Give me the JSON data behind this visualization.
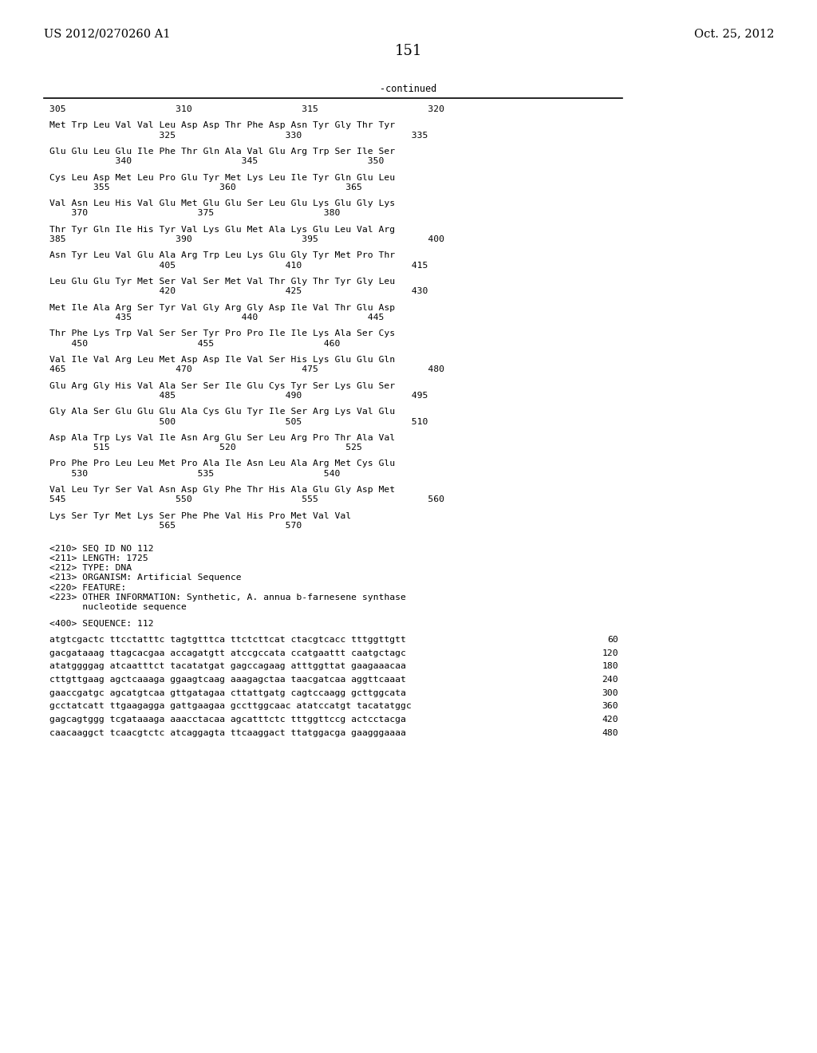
{
  "header_left": "US 2012/0270260 A1",
  "header_right": "Oct. 25, 2012",
  "page_number": "151",
  "continued_label": "-continued",
  "background_color": "#ffffff",
  "text_color": "#000000",
  "font_size_header": 10.5,
  "font_size_body": 8.5,
  "font_size_page": 13,
  "sequence_lines": [
    {
      "type": "numbering",
      "text": "305                    310                    315                    320"
    },
    {
      "type": "blank"
    },
    {
      "type": "seq",
      "text": "Met Trp Leu Val Val Leu Asp Asp Thr Phe Asp Asn Tyr Gly Thr Tyr"
    },
    {
      "type": "numbering2",
      "text": "                    325                    330                    335"
    },
    {
      "type": "blank"
    },
    {
      "type": "seq",
      "text": "Glu Glu Leu Glu Ile Phe Thr Gln Ala Val Glu Arg Trp Ser Ile Ser"
    },
    {
      "type": "numbering2",
      "text": "            340                    345                    350"
    },
    {
      "type": "blank"
    },
    {
      "type": "seq",
      "text": "Cys Leu Asp Met Leu Pro Glu Tyr Met Lys Leu Ile Tyr Gln Glu Leu"
    },
    {
      "type": "numbering2",
      "text": "        355                    360                    365"
    },
    {
      "type": "blank"
    },
    {
      "type": "seq",
      "text": "Val Asn Leu His Val Glu Met Glu Glu Ser Leu Glu Lys Glu Gly Lys"
    },
    {
      "type": "numbering2",
      "text": "    370                    375                    380"
    },
    {
      "type": "blank"
    },
    {
      "type": "seq",
      "text": "Thr Tyr Gln Ile His Tyr Val Lys Glu Met Ala Lys Glu Leu Val Arg"
    },
    {
      "type": "numbering2",
      "text": "385                    390                    395                    400"
    },
    {
      "type": "blank"
    },
    {
      "type": "seq",
      "text": "Asn Tyr Leu Val Glu Ala Arg Trp Leu Lys Glu Gly Tyr Met Pro Thr"
    },
    {
      "type": "numbering2",
      "text": "                    405                    410                    415"
    },
    {
      "type": "blank"
    },
    {
      "type": "seq",
      "text": "Leu Glu Glu Tyr Met Ser Val Ser Met Val Thr Gly Thr Tyr Gly Leu"
    },
    {
      "type": "numbering2",
      "text": "                    420                    425                    430"
    },
    {
      "type": "blank"
    },
    {
      "type": "seq",
      "text": "Met Ile Ala Arg Ser Tyr Val Gly Arg Gly Asp Ile Val Thr Glu Asp"
    },
    {
      "type": "numbering2",
      "text": "            435                    440                    445"
    },
    {
      "type": "blank"
    },
    {
      "type": "seq",
      "text": "Thr Phe Lys Trp Val Ser Ser Tyr Pro Pro Ile Ile Lys Ala Ser Cys"
    },
    {
      "type": "numbering2",
      "text": "    450                    455                    460"
    },
    {
      "type": "blank"
    },
    {
      "type": "seq",
      "text": "Val Ile Val Arg Leu Met Asp Asp Ile Val Ser His Lys Glu Glu Gln"
    },
    {
      "type": "numbering2",
      "text": "465                    470                    475                    480"
    },
    {
      "type": "blank"
    },
    {
      "type": "seq",
      "text": "Glu Arg Gly His Val Ala Ser Ser Ile Glu Cys Tyr Ser Lys Glu Ser"
    },
    {
      "type": "numbering2",
      "text": "                    485                    490                    495"
    },
    {
      "type": "blank"
    },
    {
      "type": "seq",
      "text": "Gly Ala Ser Glu Glu Glu Ala Cys Glu Tyr Ile Ser Arg Lys Val Glu"
    },
    {
      "type": "numbering2",
      "text": "                    500                    505                    510"
    },
    {
      "type": "blank"
    },
    {
      "type": "seq",
      "text": "Asp Ala Trp Lys Val Ile Asn Arg Glu Ser Leu Arg Pro Thr Ala Val"
    },
    {
      "type": "numbering2",
      "text": "        515                    520                    525"
    },
    {
      "type": "blank"
    },
    {
      "type": "seq",
      "text": "Pro Phe Pro Leu Leu Met Pro Ala Ile Asn Leu Ala Arg Met Cys Glu"
    },
    {
      "type": "numbering2",
      "text": "    530                    535                    540"
    },
    {
      "type": "blank"
    },
    {
      "type": "seq",
      "text": "Val Leu Tyr Ser Val Asn Asp Gly Phe Thr His Ala Glu Gly Asp Met"
    },
    {
      "type": "numbering2",
      "text": "545                    550                    555                    560"
    },
    {
      "type": "blank"
    },
    {
      "type": "seq",
      "text": "Lys Ser Tyr Met Lys Ser Phe Phe Val His Pro Met Val Val"
    },
    {
      "type": "numbering2",
      "text": "                    565                    570"
    },
    {
      "type": "blank"
    },
    {
      "type": "blank"
    },
    {
      "type": "meta",
      "text": "<210> SEQ ID NO 112"
    },
    {
      "type": "meta",
      "text": "<211> LENGTH: 1725"
    },
    {
      "type": "meta",
      "text": "<212> TYPE: DNA"
    },
    {
      "type": "meta",
      "text": "<213> ORGANISM: Artificial Sequence"
    },
    {
      "type": "meta",
      "text": "<220> FEATURE:"
    },
    {
      "type": "meta",
      "text": "<223> OTHER INFORMATION: Synthetic, A. annua b-farnesene synthase"
    },
    {
      "type": "meta_indent",
      "text": "      nucleotide sequence"
    },
    {
      "type": "blank"
    },
    {
      "type": "meta",
      "text": "<400> SEQUENCE: 112"
    },
    {
      "type": "blank"
    },
    {
      "type": "dna",
      "text": "atgtcgactc ttcctatttc tagtgtttca ttctcttcat ctacgtcacc tttggttgtt",
      "num": "60"
    },
    {
      "type": "blank_small"
    },
    {
      "type": "dna",
      "text": "gacgataaag ttagcacgaa accagatgtt atccgccata ccatgaattt caatgctagc",
      "num": "120"
    },
    {
      "type": "blank_small"
    },
    {
      "type": "dna",
      "text": "atatggggag atcaatttct tacatatgat gagccagaag atttggttat gaagaaacaa",
      "num": "180"
    },
    {
      "type": "blank_small"
    },
    {
      "type": "dna",
      "text": "cttgttgaag agctcaaaga ggaagtcaag aaagagctaa taacgatcaa aggttcaaat",
      "num": "240"
    },
    {
      "type": "blank_small"
    },
    {
      "type": "dna",
      "text": "gaaccgatgc agcatgtcaa gttgatagaa cttattgatg cagtccaagg gcttggcata",
      "num": "300"
    },
    {
      "type": "blank_small"
    },
    {
      "type": "dna",
      "text": "gcctatcatt ttgaagagga gattgaagaa gccttggcaac atatccatgt tacatatggc",
      "num": "360"
    },
    {
      "type": "blank_small"
    },
    {
      "type": "dna",
      "text": "gagcagtggg tcgataaaga aaacctacaa agcatttctc tttggttccg actcctacga",
      "num": "420"
    },
    {
      "type": "blank_small"
    },
    {
      "type": "dna",
      "text": "caacaaggct tcaacgtctc atcaggagta ttcaaggact ttatggacga gaagggaaaa",
      "num": "480"
    }
  ]
}
